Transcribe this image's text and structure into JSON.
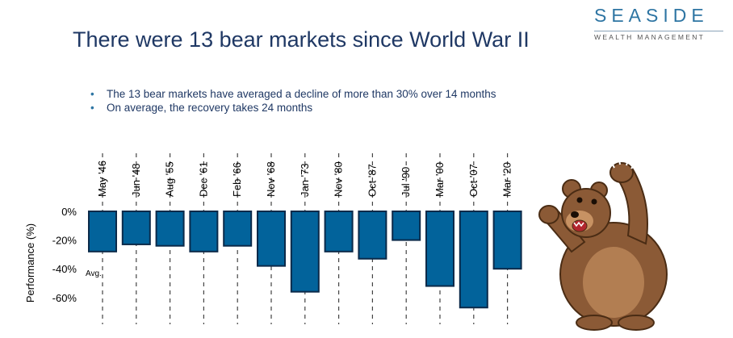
{
  "title": "There were 13 bear markets since World War II",
  "logo": {
    "name": "SEASIDE",
    "sub": "WEALTH MANAGEMENT"
  },
  "bullets": [
    "The 13 bear markets have averaged a decline of more than 30% over 14 months",
    "On average, the recovery takes 24 months"
  ],
  "colors": {
    "bar": "#02639b",
    "bar_edge": "#0b2a4a",
    "title": "#1f3864",
    "logo": "#2e75a3"
  },
  "chart_data": {
    "type": "bar",
    "categories": [
      "May '46",
      "Jun '48",
      "Aug '55",
      "Dec '61",
      "Feb '66",
      "Nov '68",
      "Jan '73",
      "Nov '80",
      "Oct '87",
      "Jul '90",
      "Mar '00",
      "Oct '07",
      "Mar '20"
    ],
    "values": [
      -28,
      -23,
      -24,
      -28,
      -24,
      -38,
      -56,
      -28,
      -33,
      -20,
      -52,
      -67,
      -40
    ],
    "ylabel": "Performance (%)",
    "yticks": [
      "0%",
      "-20%",
      "-40%",
      "-60%"
    ],
    "ytick_values": [
      0,
      -20,
      -40,
      -60
    ],
    "ylim": [
      -75,
      0
    ],
    "annotation": "Avg.",
    "grid": false
  }
}
